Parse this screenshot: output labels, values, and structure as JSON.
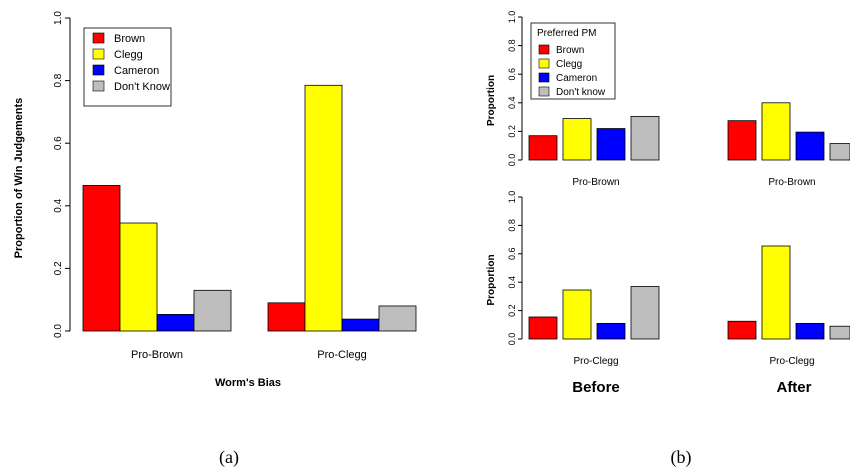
{
  "figure": {
    "caption_a": "(a)",
    "caption_b": "(b)",
    "label_before": "Before",
    "label_after": "After"
  },
  "colors": {
    "Brown": "#ff0000",
    "Clegg": "#ffff00",
    "Cameron": "#0000ff",
    "DontKnow": "#bebebe"
  },
  "chart_data": [
    {
      "panel": "a",
      "type": "bar",
      "xlabel": "Worm's Bias",
      "ylabel": "Proportion of Win Judgements",
      "ylim": [
        0,
        1
      ],
      "yticks": [
        "0.0",
        "0.2",
        "0.4",
        "0.6",
        "0.8",
        "1.0"
      ],
      "categories": [
        "Pro-Brown",
        "Pro-Clegg"
      ],
      "legend": {
        "placement": "top-left",
        "title": "",
        "entries": [
          "Brown",
          "Clegg",
          "Cameron",
          "Don't Know"
        ]
      },
      "series": [
        {
          "name": "Brown",
          "values": [
            0.465,
            0.09
          ]
        },
        {
          "name": "Clegg",
          "values": [
            0.345,
            0.785
          ]
        },
        {
          "name": "Cameron",
          "values": [
            0.053,
            0.038
          ]
        },
        {
          "name": "Don't Know",
          "values": [
            0.13,
            0.08
          ]
        }
      ]
    },
    {
      "panel": "b-before-top",
      "type": "bar",
      "category": "Pro-Brown",
      "ylabel": "Proportion",
      "ylim": [
        0,
        1
      ],
      "yticks": [
        "0.0",
        "0.2",
        "0.4",
        "0.6",
        "0.8",
        "1.0"
      ],
      "legend": {
        "placement": "top-left",
        "title": "Preferred PM",
        "entries": [
          "Brown",
          "Clegg",
          "Cameron",
          "Don't know"
        ]
      },
      "series": [
        "Brown",
        "Clegg",
        "Cameron",
        "Don't know"
      ],
      "values": [
        0.17,
        0.29,
        0.22,
        0.305
      ]
    },
    {
      "panel": "b-after-top",
      "type": "bar",
      "category": "Pro-Brown",
      "ylim": [
        0,
        1
      ],
      "series": [
        "Brown",
        "Clegg",
        "Cameron",
        "Don't know"
      ],
      "values": [
        0.275,
        0.4,
        0.195,
        0.115
      ]
    },
    {
      "panel": "b-before-bottom",
      "type": "bar",
      "category": "Pro-Clegg",
      "ylabel": "Proportion",
      "ylim": [
        0,
        1
      ],
      "yticks": [
        "0.0",
        "0.2",
        "0.4",
        "0.6",
        "0.8",
        "1.0"
      ],
      "series": [
        "Brown",
        "Clegg",
        "Cameron",
        "Don't know"
      ],
      "values": [
        0.155,
        0.345,
        0.11,
        0.37
      ]
    },
    {
      "panel": "b-after-bottom",
      "type": "bar",
      "category": "Pro-Clegg",
      "ylim": [
        0,
        1
      ],
      "series": [
        "Brown",
        "Clegg",
        "Cameron",
        "Don't know"
      ],
      "values": [
        0.125,
        0.655,
        0.11,
        0.09
      ]
    }
  ]
}
